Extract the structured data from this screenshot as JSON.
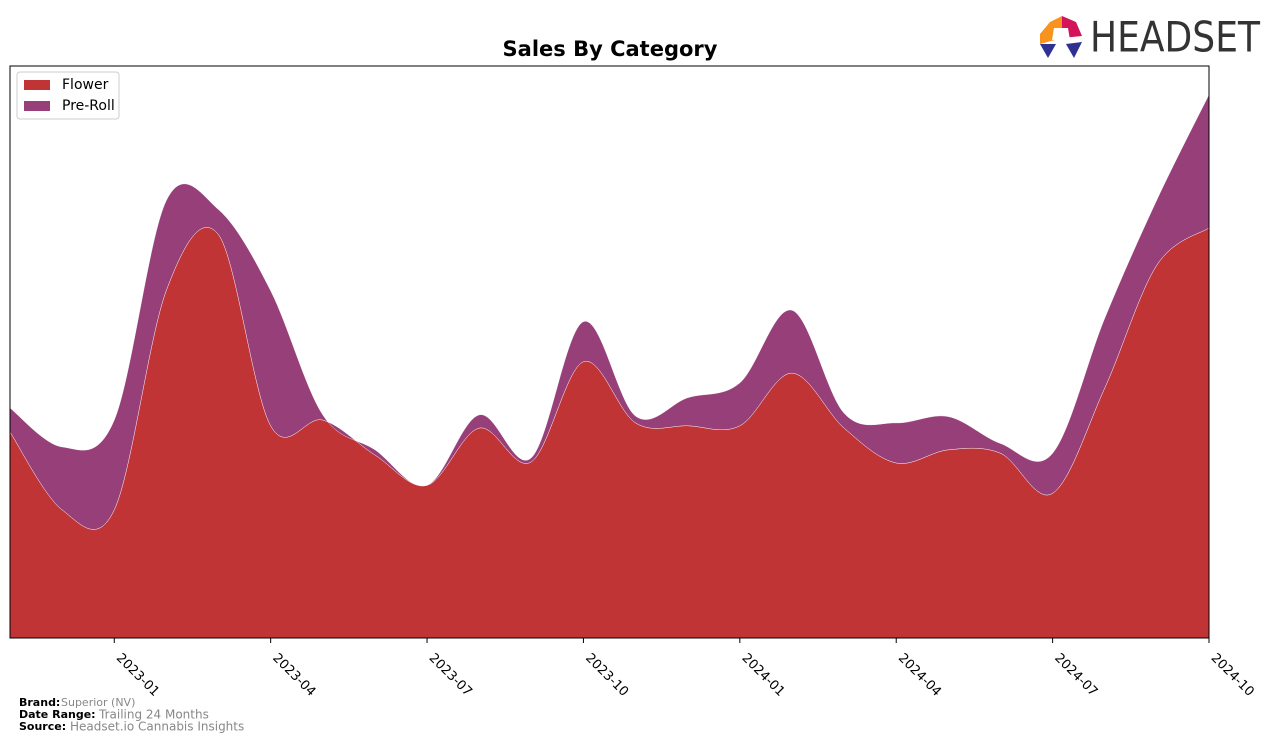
{
  "chart_data": {
    "type": "stacked-area",
    "title": "Sales By Category",
    "x": [
      "2022-11",
      "2022-12",
      "2023-01",
      "2023-02",
      "2023-03",
      "2023-04",
      "2023-05",
      "2023-06",
      "2023-07",
      "2023-08",
      "2023-09",
      "2023-10",
      "2023-11",
      "2023-12",
      "2024-01",
      "2024-02",
      "2024-03",
      "2024-04",
      "2024-05",
      "2024-06",
      "2024-07",
      "2024-08",
      "2024-09",
      "2024-10"
    ],
    "xlim": [
      "2022-11",
      "2024-10"
    ],
    "xticks": [
      "2023-01",
      "2023-04",
      "2023-07",
      "2023-10",
      "2024-01",
      "2024-04",
      "2024-07",
      "2024-10"
    ],
    "ylim": [
      0,
      100
    ],
    "legend": "upper-left",
    "series": [
      {
        "name": "Flower",
        "color": "#c13435",
        "values": [
          36.0,
          22.4,
          22.4,
          60.8,
          70.5,
          37.1,
          38.1,
          32.0,
          26.7,
          36.7,
          30.8,
          48.3,
          37.6,
          37.1,
          37.1,
          46.3,
          36.7,
          30.6,
          32.9,
          32.3,
          25.3,
          43.7,
          65.2,
          71.7
        ]
      },
      {
        "name": "Pre-Roll",
        "color": "#963f78",
        "values": [
          4.2,
          11.0,
          15.7,
          15.7,
          4.4,
          23.6,
          0.9,
          0.9,
          0.0,
          2.3,
          0.7,
          7.0,
          1.2,
          4.9,
          7.5,
          11.0,
          2.6,
          7.0,
          5.8,
          1.7,
          7.0,
          12.2,
          11.4,
          23.3
        ]
      }
    ]
  },
  "logo": "HEADSET",
  "footer": {
    "brand_label": "Brand:",
    "brand": "Superior (NV)",
    "range_label": "Date Range:",
    "range": "Trailing 24 Months",
    "source_label": "Source:",
    "source": "Headset.io Cannabis Insights"
  }
}
